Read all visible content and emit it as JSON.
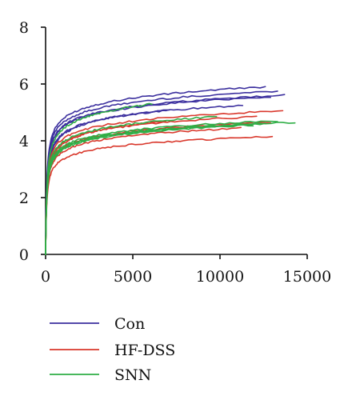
{
  "chart_data": {
    "type": "line",
    "title": "",
    "xlabel": "",
    "ylabel": "",
    "xlim": [
      0,
      15000
    ],
    "ylim": [
      0,
      8
    ],
    "x_ticks": [
      0,
      5000,
      10000,
      15000
    ],
    "y_ticks": [
      0,
      2,
      4,
      6,
      8
    ],
    "x_tick_labels": [
      "0",
      "5000",
      "10000",
      "15000"
    ],
    "y_tick_labels": [
      "0",
      "2",
      "4",
      "6",
      "8"
    ],
    "grid": false,
    "legend_position": "bottom-left",
    "groups": [
      {
        "name": "Con",
        "color": "#3b2f9e",
        "curves": [
          {
            "x_end": 12600,
            "y_end": 5.9
          },
          {
            "x_end": 13300,
            "y_end": 5.75
          },
          {
            "x_end": 13700,
            "y_end": 5.6
          },
          {
            "x_end": 12900,
            "y_end": 5.55
          },
          {
            "x_end": 11300,
            "y_end": 5.25
          },
          {
            "x_end": 7100,
            "y_end": 5.1
          }
        ]
      },
      {
        "name": "HF-DSS",
        "color": "#d9382c",
        "curves": [
          {
            "x_end": 13600,
            "y_end": 5.05
          },
          {
            "x_end": 12100,
            "y_end": 4.85
          },
          {
            "x_end": 12900,
            "y_end": 4.65
          },
          {
            "x_end": 11200,
            "y_end": 4.45
          },
          {
            "x_end": 13000,
            "y_end": 4.15
          },
          {
            "x_end": 6900,
            "y_end": 4.7
          }
        ]
      },
      {
        "name": "SNN",
        "color": "#2fae46",
        "curves": [
          {
            "x_end": 6100,
            "y_end": 5.3
          },
          {
            "x_end": 14300,
            "y_end": 4.65
          },
          {
            "x_end": 13300,
            "y_end": 4.7
          },
          {
            "x_end": 12600,
            "y_end": 4.6
          },
          {
            "x_end": 11900,
            "y_end": 4.55
          },
          {
            "x_end": 9800,
            "y_end": 4.85
          }
        ]
      }
    ]
  }
}
